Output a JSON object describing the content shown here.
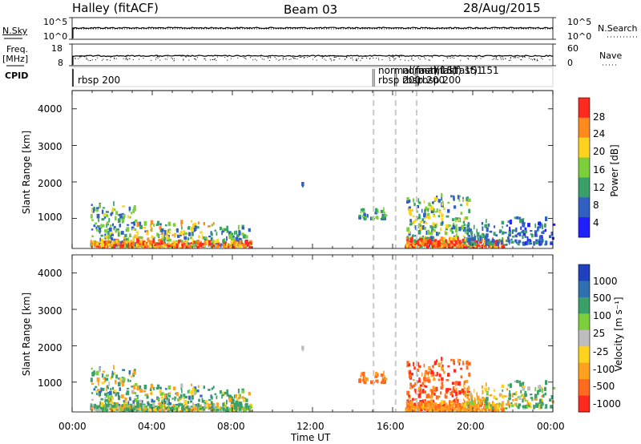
{
  "header": {
    "station": "Halley (fitACF)",
    "beam": "Beam 03",
    "date": "28/Aug/2015"
  },
  "top_panels": {
    "nsky_label": "N.Sky",
    "nsky_ticks": [
      "10^5",
      "10^0"
    ],
    "nsearch_label": "N.Search",
    "nsearch_ticks": [
      "10^5",
      "10^0"
    ],
    "freq_label_1": "Freq.",
    "freq_label_2": "[MHz]",
    "freq_ticks": [
      "18",
      "8"
    ],
    "nave_label": "Nave",
    "nave_ticks": [
      "60",
      "0"
    ],
    "cpid_label": "CPID",
    "cpid_entries": [
      {
        "text": "rbsp 200",
        "hour": 0.2
      },
      {
        "text": "normal(fast) 151",
        "hour": 15.2
      },
      {
        "text": "rbsp 200",
        "hour": 15.2
      },
      {
        "text": "normal(fast) 151",
        "hour": 16.4
      },
      {
        "text": "rbsp 200",
        "hour": 16.4
      },
      {
        "text": "normal(fast) 151",
        "hour": 17.2
      },
      {
        "text": "rbsp 200",
        "hour": 17.2
      }
    ],
    "mode_changes_hours": [
      15.05,
      16.15,
      17.2
    ]
  },
  "power_panel": {
    "ylabel": "Slant Range [km]",
    "yticks": [
      "4000",
      "3000",
      "2000",
      "1000"
    ],
    "colorbar_label": "Power [dB]",
    "colorbar_ticks": [
      "28",
      "24",
      "20",
      "16",
      "12",
      "8",
      "4"
    ]
  },
  "velocity_panel": {
    "ylabel": "Slant Range [km]",
    "yticks": [
      "4000",
      "3000",
      "2000",
      "1000"
    ],
    "colorbar_label": "Velocity [m s⁻¹]",
    "colorbar_ticks": [
      "1000",
      "500",
      "100",
      "25",
      "-25",
      "-100",
      "-500",
      "-1000"
    ]
  },
  "xaxis": {
    "label": "Time UT",
    "ticks": [
      "00:00",
      "04:00",
      "08:00",
      "12:00",
      "16:00",
      "20:00",
      "00:00"
    ]
  },
  "chart_data": {
    "type": "heatmap",
    "title": "Halley (fitACF)",
    "subtitle": "Beam 03",
    "date": "28/Aug/2015",
    "x_range_hours": [
      0,
      24
    ],
    "y_range_km": [
      180,
      4500
    ],
    "xlabel": "Time UT",
    "ylabel": "Slant Range [km]",
    "power_colorscale": [
      {
        "dB": 4,
        "color": "#2020ff"
      },
      {
        "dB": 8,
        "color": "#3060c0"
      },
      {
        "dB": 12,
        "color": "#3aa06a"
      },
      {
        "dB": 16,
        "color": "#7ccf3a"
      },
      {
        "dB": 20,
        "color": "#ffd21e"
      },
      {
        "dB": 24,
        "color": "#ff8a1e"
      },
      {
        "dB": 28,
        "color": "#ff2a1e"
      }
    ],
    "velocity_colorscale": [
      {
        "ms": 1000,
        "color": "#2040c0"
      },
      {
        "ms": 500,
        "color": "#3070b0"
      },
      {
        "ms": 100,
        "color": "#3aa06a"
      },
      {
        "ms": 25,
        "color": "#7ccf3a"
      },
      {
        "ms": 0,
        "color": "#bdbdbd"
      },
      {
        "ms": -25,
        "color": "#ffd21e"
      },
      {
        "ms": -100,
        "color": "#ffa01e"
      },
      {
        "ms": -500,
        "color": "#ff6a1e"
      },
      {
        "ms": -1000,
        "color": "#ff2a1e"
      }
    ],
    "scatter_clusters": [
      {
        "t0": 0.9,
        "t1": 3.1,
        "r0": 200,
        "r1": 1350,
        "n": 170,
        "pw": [
          6,
          20
        ],
        "vel": [
          -150,
          400
        ]
      },
      {
        "t0": 3.0,
        "t1": 7.2,
        "r0": 200,
        "r1": 900,
        "n": 200,
        "pw": [
          6,
          26
        ],
        "vel": [
          -150,
          400
        ]
      },
      {
        "t0": 7.2,
        "t1": 8.9,
        "r0": 200,
        "r1": 700,
        "n": 70,
        "pw": [
          6,
          18
        ],
        "vel": [
          -100,
          300
        ]
      },
      {
        "t0": 0.9,
        "t1": 8.9,
        "r0": 180,
        "r1": 330,
        "n": 240,
        "pw": [
          18,
          30
        ],
        "vel": [
          -100,
          200
        ]
      },
      {
        "t0": 14.2,
        "t1": 15.6,
        "r0": 950,
        "r1": 1200,
        "n": 40,
        "pw": [
          8,
          16
        ],
        "vel": [
          -600,
          -200
        ]
      },
      {
        "t0": 16.6,
        "t1": 19.8,
        "r0": 200,
        "r1": 1600,
        "n": 260,
        "pw": [
          6,
          22
        ],
        "vel": [
          -1100,
          -50
        ]
      },
      {
        "t0": 16.6,
        "t1": 21.5,
        "r0": 180,
        "r1": 380,
        "n": 230,
        "pw": [
          20,
          30
        ],
        "vel": [
          -400,
          -50
        ]
      },
      {
        "t0": 19.5,
        "t1": 22.0,
        "r0": 250,
        "r1": 900,
        "n": 90,
        "pw": [
          6,
          14
        ],
        "vel": [
          -200,
          100
        ]
      },
      {
        "t0": 21.8,
        "t1": 24.0,
        "r0": 250,
        "r1": 1000,
        "n": 90,
        "pw": [
          4,
          12
        ],
        "vel": [
          -100,
          300
        ]
      },
      {
        "t0": 11.4,
        "t1": 11.5,
        "r0": 1850,
        "r1": 1900,
        "n": 2,
        "pw": [
          6,
          10
        ],
        "vel": [
          0,
          50
        ]
      }
    ]
  }
}
